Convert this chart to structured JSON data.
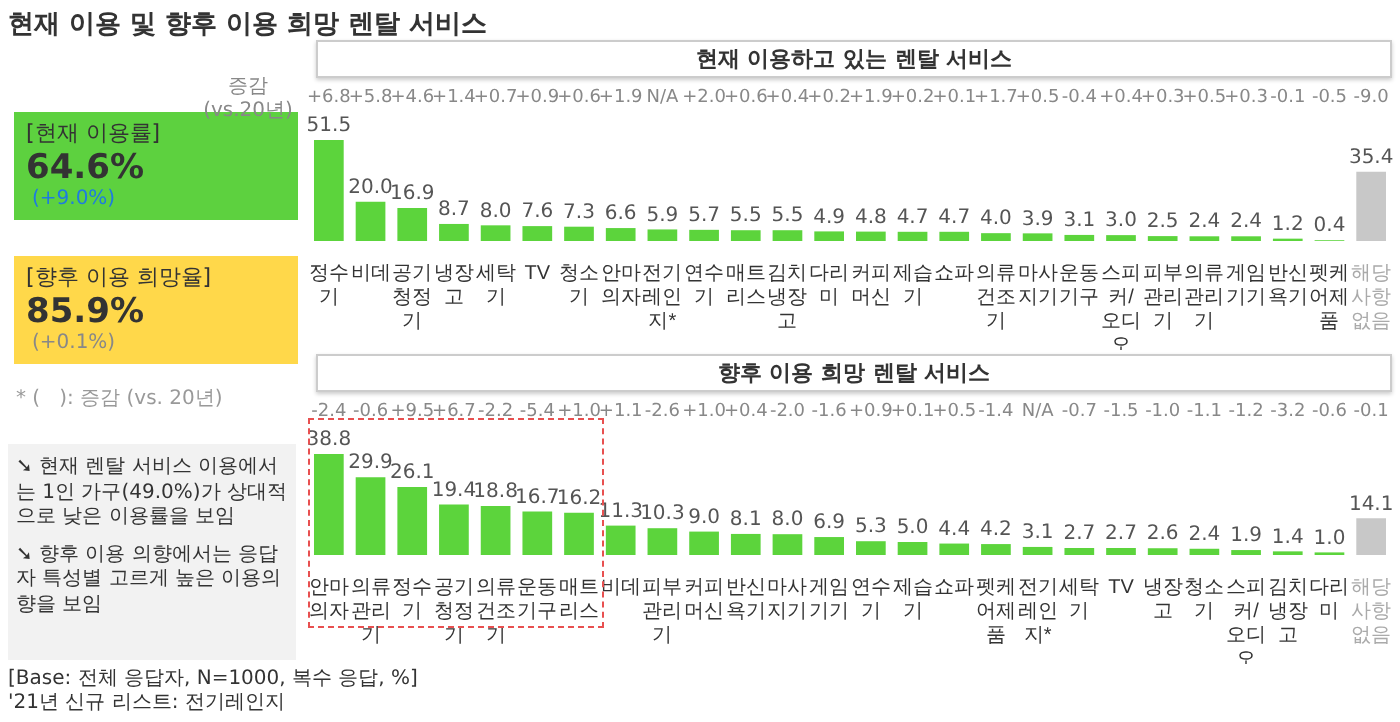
{
  "chart_data": [
    {
      "type": "other",
      "title": "현재 이용 및 향후 이용 희망 렌탈 서비스",
      "annotations": [
        "[현재 이용률]",
        "64.6%",
        "(+9.0%)",
        "[향후 이용 희망율]",
        "85.9%",
        "(+0.1%)",
        "* (   ): 증감 (vs. 20년)",
        "➘ 현재 렌탈 서비스 이용에서는 1인 가구(49.0%)가 상대적으로 낮은 이용률을 보임",
        "➘ 향후 이용 의향에서는 응답자 특성별 고르게 높은 이용의향을 보임",
        "[Base: 전체 응답자, N=1000, 복수 응답, %]",
        "'21년 신규 리스트: 전기레인지"
      ]
    },
    {
      "type": "bar",
      "title": "현재 이용하고 있는 렌탈 서비스",
      "categories": [
        "정수기",
        "비데",
        "공기청정기",
        "냉장고",
        "세탁기",
        "TV",
        "청소기",
        "안마의자",
        "전기레인지*",
        "연수기",
        "매트리스",
        "김치냉장고",
        "다리미",
        "커피머신",
        "제습기",
        "쇼파",
        "의류건조기",
        "마사지기",
        "운동기구",
        "스피커/오디오",
        "피부관리기",
        "의류관리기",
        "게임기기",
        "반신욕기",
        "펫케어제품",
        "해당사항없음"
      ],
      "values": [
        51.5,
        20.0,
        16.9,
        8.7,
        8.0,
        7.6,
        7.3,
        6.6,
        5.9,
        5.7,
        5.5,
        5.5,
        4.9,
        4.8,
        4.7,
        4.7,
        4.0,
        3.9,
        3.1,
        3.0,
        2.5,
        2.4,
        2.4,
        1.2,
        0.4,
        35.4
      ],
      "value_labels": [
        "51.5",
        "20.0",
        "16.9",
        "8.7",
        "8.0",
        "7.6",
        "7.3",
        "6.6",
        "5.9",
        "5.7",
        "5.5",
        "5.5",
        "4.9",
        "4.8",
        "4.7",
        "4.7",
        "4.0",
        "3.9",
        "3.1",
        "3.0",
        "2.5",
        "2.4",
        "2.4",
        "1.2",
        "0.4",
        "35.4"
      ],
      "colors": [
        "#5cd43c",
        "#5cd43c",
        "#5cd43c",
        "#5cd43c",
        "#5cd43c",
        "#5cd43c",
        "#5cd43c",
        "#5cd43c",
        "#5cd43c",
        "#5cd43c",
        "#5cd43c",
        "#5cd43c",
        "#5cd43c",
        "#5cd43c",
        "#5cd43c",
        "#5cd43c",
        "#5cd43c",
        "#5cd43c",
        "#5cd43c",
        "#5cd43c",
        "#5cd43c",
        "#5cd43c",
        "#5cd43c",
        "#5cd43c",
        "#5cd43c",
        "#c8c8c8"
      ],
      "annotations": [
        "증감",
        "(vs.20년)",
        "+6.8",
        "+5.8",
        "+4.6",
        "+1.4",
        "+0.7",
        "+0.9",
        "+0.6",
        "+1.9",
        "N/A",
        "+2.0",
        "+0.6",
        "+0.4",
        "+0.2",
        "+1.9",
        "+0.2",
        "+0.1",
        "+1.7",
        "+0.5",
        "-0.4",
        "+0.4",
        "+0.3",
        "+0.5",
        "+0.3",
        "-0.1",
        "-0.5",
        "-9.0"
      ]
    },
    {
      "type": "bar",
      "title": "향후 이용 희망 렌탈 서비스",
      "categories": [
        "안마의자",
        "의류관리기",
        "정수기",
        "공기청정기",
        "의류건조기",
        "운동기구",
        "매트리스",
        "비데",
        "피부관리기",
        "커피머신",
        "반신욕기",
        "마사지기",
        "게임기기",
        "연수기",
        "제습기",
        "쇼파",
        "펫케어제품",
        "전기레인지*",
        "세탁기",
        "TV",
        "냉장고",
        "청소기",
        "스피커/오디오",
        "김치냉장고",
        "다리미",
        "해당사항없음"
      ],
      "values": [
        38.8,
        29.9,
        26.1,
        19.4,
        18.8,
        16.7,
        16.2,
        11.3,
        10.3,
        9.0,
        8.1,
        8.0,
        6.9,
        5.3,
        5.0,
        4.4,
        4.2,
        3.1,
        2.7,
        2.7,
        2.6,
        2.4,
        1.9,
        1.4,
        1.0,
        14.1
      ],
      "value_labels": [
        "38.8",
        "29.9",
        "26.1",
        "19.4",
        "18.8",
        "16.7",
        "16.2",
        "11.3",
        "10.3",
        "9.0",
        "8.1",
        "8.0",
        "6.9",
        "5.3",
        "5.0",
        "4.4",
        "4.2",
        "3.1",
        "2.7",
        "2.7",
        "2.6",
        "2.4",
        "1.9",
        "1.4",
        "1.0",
        "14.1"
      ],
      "colors": [
        "#5cd43c",
        "#5cd43c",
        "#5cd43c",
        "#5cd43c",
        "#5cd43c",
        "#5cd43c",
        "#5cd43c",
        "#5cd43c",
        "#5cd43c",
        "#5cd43c",
        "#5cd43c",
        "#5cd43c",
        "#5cd43c",
        "#5cd43c",
        "#5cd43c",
        "#5cd43c",
        "#5cd43c",
        "#5cd43c",
        "#5cd43c",
        "#5cd43c",
        "#5cd43c",
        "#5cd43c",
        "#5cd43c",
        "#5cd43c",
        "#5cd43c",
        "#c8c8c8"
      ],
      "annotations": [
        "-2.4",
        "-0.6",
        "+9.5",
        "+6.7",
        "-2.2",
        "-5.4",
        "+1.0",
        "+1.1",
        "-2.6",
        "+1.0",
        "+0.4",
        "-2.0",
        "-1.6",
        "+0.9",
        "+0.1",
        "+0.5",
        "-1.4",
        "N/A",
        "-0.7",
        "-1.5",
        "-1.0",
        "-1.1",
        "-1.2",
        "-3.2",
        "-0.6",
        "-0.1"
      ]
    }
  ]
}
